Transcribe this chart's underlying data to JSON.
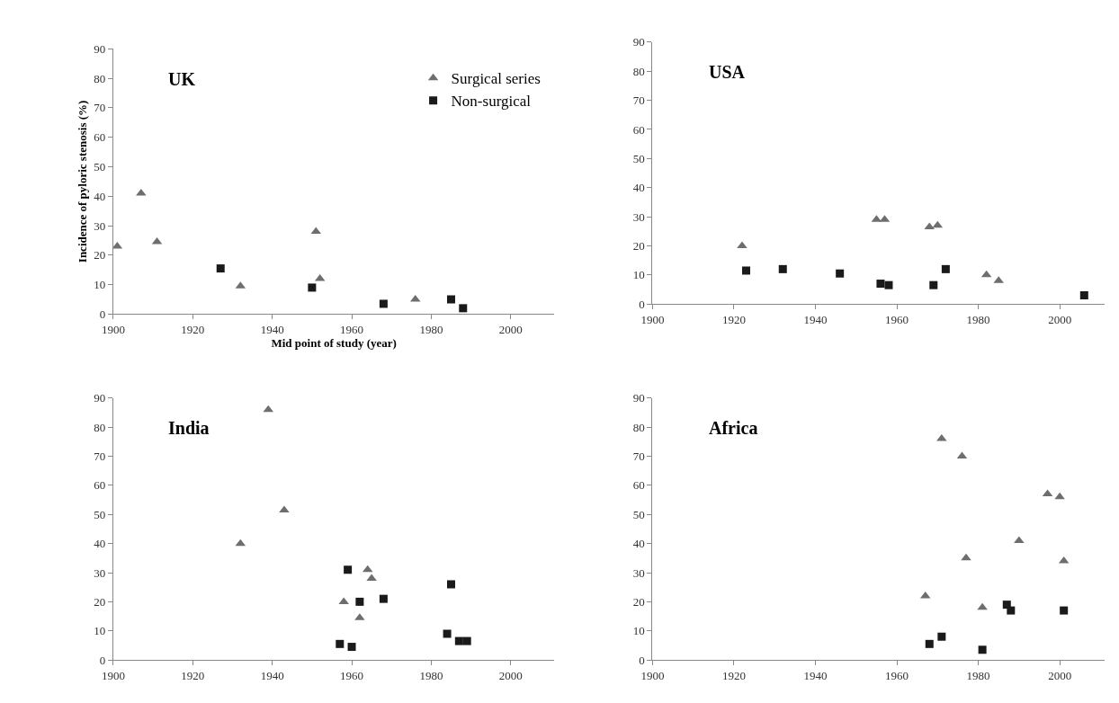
{
  "chart_data": [
    {
      "type": "scatter",
      "title": "UK",
      "xlabel": "Mid point of study (year)",
      "ylabel": "Incidence of pyloric stenosis (%)",
      "legend": "top right",
      "xlim": [
        1900,
        2011
      ],
      "xticks": [
        1900,
        1920,
        1940,
        1960,
        1980,
        2000
      ],
      "ylim": [
        0,
        90
      ],
      "yticks": [
        0,
        10,
        20,
        30,
        40,
        50,
        60,
        70,
        80,
        90
      ],
      "series": [
        {
          "name": "Surgical series",
          "color": "#6e6e6e",
          "marker": "triangle",
          "x": [
            1901,
            1907,
            1911,
            1932,
            1951,
            1952,
            1976
          ],
          "values": [
            23,
            41,
            24.5,
            9.5,
            28,
            12,
            5
          ]
        },
        {
          "name": "Non-surgical",
          "color": "#1a1a1a",
          "marker": "square",
          "x": [
            1927,
            1950,
            1968,
            1985,
            1988
          ],
          "values": [
            15.5,
            9,
            3.5,
            5,
            2
          ]
        }
      ]
    },
    {
      "type": "scatter",
      "title": "USA",
      "xlim": [
        1900,
        2011
      ],
      "xticks": [
        1900,
        1920,
        1940,
        1960,
        1980,
        2000
      ],
      "ylim": [
        0,
        90
      ],
      "yticks": [
        0,
        10,
        20,
        30,
        40,
        50,
        60,
        70,
        80,
        90
      ],
      "series": [
        {
          "color": "#6e6e6e",
          "marker": "triangle",
          "x": [
            1922,
            1955,
            1957,
            1968,
            1970,
            1982,
            1985
          ],
          "values": [
            20,
            29,
            29,
            26.5,
            27,
            10,
            8
          ]
        },
        {
          "color": "#1a1a1a",
          "marker": "square",
          "x": [
            1923,
            1932,
            1946,
            1956,
            1958,
            1969,
            1972,
            2006
          ],
          "values": [
            11.5,
            12,
            10.5,
            7,
            6.5,
            6.5,
            12,
            3
          ]
        }
      ]
    },
    {
      "type": "scatter",
      "title": "India",
      "xlim": [
        1900,
        2011
      ],
      "xticks": [
        1900,
        1920,
        1940,
        1960,
        1980,
        2000
      ],
      "ylim": [
        0,
        90
      ],
      "yticks": [
        0,
        10,
        20,
        30,
        40,
        50,
        60,
        70,
        80,
        90
      ],
      "series": [
        {
          "color": "#6e6e6e",
          "marker": "triangle",
          "x": [
            1932,
            1939,
            1943,
            1958,
            1962,
            1964,
            1965
          ],
          "values": [
            40,
            86,
            51.5,
            20,
            14.5,
            31,
            28
          ]
        },
        {
          "color": "#1a1a1a",
          "marker": "square",
          "x": [
            1957,
            1959,
            1960,
            1962,
            1968,
            1984,
            1985,
            1987,
            1989
          ],
          "values": [
            5.5,
            31,
            4.5,
            20,
            21,
            9,
            26,
            6.5,
            6.5
          ]
        }
      ]
    },
    {
      "type": "scatter",
      "title": "Africa",
      "xlim": [
        1900,
        2011
      ],
      "xticks": [
        1900,
        1920,
        1940,
        1960,
        1980,
        2000
      ],
      "ylim": [
        0,
        90
      ],
      "yticks": [
        0,
        10,
        20,
        30,
        40,
        50,
        60,
        70,
        80,
        90
      ],
      "series": [
        {
          "color": "#6e6e6e",
          "marker": "triangle",
          "x": [
            1967,
            1971,
            1976,
            1977,
            1981,
            1990,
            1997,
            2000,
            2001
          ],
          "values": [
            22,
            76,
            70,
            35,
            18,
            41,
            57,
            56,
            34
          ]
        },
        {
          "color": "#1a1a1a",
          "marker": "square",
          "x": [
            1968,
            1971,
            1981,
            1987,
            1988,
            2001
          ],
          "values": [
            5.5,
            8,
            3.5,
            19,
            17,
            17
          ]
        }
      ]
    }
  ]
}
